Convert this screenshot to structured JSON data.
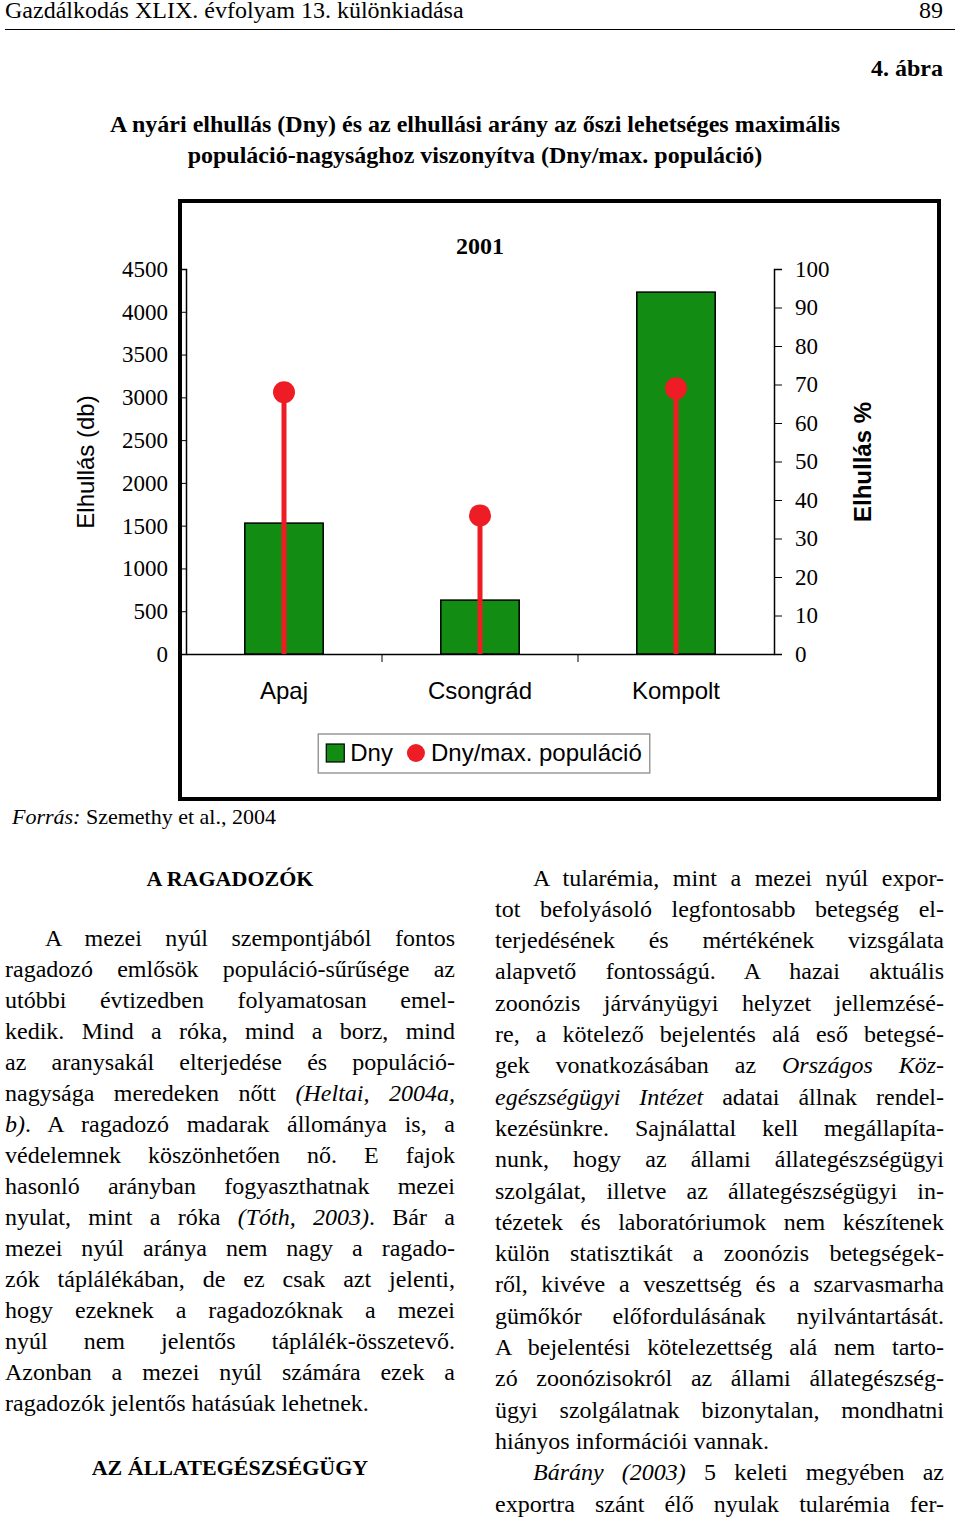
{
  "header": {
    "journal": "Gazdálkodás XLIX. évfolyam 13. különkiadása",
    "page": "89"
  },
  "figure": {
    "number": "4. ábra",
    "title_lines": [
      "A nyári elhullás (Dny) és az elhullási arány az őszi lehetséges maximális",
      "populáció-nagysághoz viszonyítva (Dny/max. populáció)"
    ],
    "source": [
      {
        "italic": "Forrás:"
      },
      " Szemethy et al., 2004"
    ]
  },
  "chart_data": {
    "type": "bar",
    "title": "2001",
    "categories": [
      "Apaj",
      "Csongrád",
      "Kompolt"
    ],
    "series": [
      {
        "name": "Dny",
        "type": "bar",
        "color": "#138c13",
        "values": [
          1530,
          630,
          4230
        ]
      },
      {
        "name": "Dny/max. populáció",
        "type": "lollipop",
        "color": "#ee1c24",
        "marker": "circle",
        "axis": "y2",
        "values": [
          68,
          36,
          69
        ]
      }
    ],
    "ylabel": "Elhullás (db)",
    "y2label": "Elhullás %",
    "ylim": [
      0,
      4500
    ],
    "yticks": [
      0,
      500,
      1000,
      1500,
      2000,
      2500,
      3000,
      3500,
      4000,
      4500
    ],
    "y2lim": [
      0,
      100
    ],
    "y2ticks": [
      0,
      10,
      20,
      30,
      40,
      50,
      60,
      70,
      80,
      90,
      100
    ],
    "grid": false,
    "legend": "bottom"
  },
  "left_column": {
    "heading": "A RAGADOZÓK",
    "paragraph": [
      [
        "A mezei nyúl szempontjából fontos"
      ],
      [
        "ragadozó emlősök populáció-sűrűsége az"
      ],
      [
        "utóbbi évtizedben folyamatosan emel-"
      ],
      [
        "kedik. Mind a róka, mind a borz, mind"
      ],
      [
        "az aranysakál elterjedése és populáció-"
      ],
      [
        "nagysága meredeken nőtt ",
        {
          "italic": "(Heltai, 2004a,"
        }
      ],
      [
        {
          "italic": "b)"
        },
        ". A ragadozó madarak állománya is, a"
      ],
      [
        "védelemnek köszönhetően nő. E fajok"
      ],
      [
        "hasonló arányban fogyaszthatnak mezei"
      ],
      [
        "nyulat, mint a róka ",
        {
          "italic": "(Tóth, 2003)"
        },
        ". Bár a"
      ],
      [
        "mezei nyúl aránya nem nagy a ragado-"
      ],
      [
        "zók táplálékában, de ez csak azt jelenti,"
      ],
      [
        "hogy ezeknek a ragadozóknak a mezei"
      ],
      [
        "nyúl nem jelentős táplálék-összetevő."
      ],
      [
        "Azonban a mezei nyúl számára ezek a"
      ],
      [
        "ragadozók jelentős hatásúak lehetnek."
      ]
    ],
    "heading2": "AZ ÁLLATEGÉSZSÉGÜGY"
  },
  "right_column": {
    "paragraphs": [
      [
        [
          "A tularémia, mint a mezei nyúl expor-"
        ],
        [
          "tot befolyásoló legfontosabb betegség el-"
        ],
        [
          "terjedésének és mértékének vizsgálata"
        ],
        [
          "alapvető fontosságú. A hazai aktuális"
        ],
        [
          "zoonózis járványügyi helyzet jellemzésé-"
        ],
        [
          "re, a kötelező bejelentés alá eső betegsé-"
        ],
        [
          "gek vonatkozásában az ",
          {
            "italic": "Országos Köz-"
          }
        ],
        [
          {
            "italic": "egészségügyi Intézet"
          },
          " adatai állnak rendel-"
        ],
        [
          "kezésünkre. Sajnálattal kell megállapíta-"
        ],
        [
          "nunk, hogy az állami állategészségügyi"
        ],
        [
          "szolgálat, illetve az állategészségügyi in-"
        ],
        [
          "tézetek és laboratóriumok nem készítenek"
        ],
        [
          "külön statisztikát a zoonózis betegségek-"
        ],
        [
          "ről, kivéve a veszettség és a szarvasmarha"
        ],
        [
          "gümőkór előfordulásának nyilvántartását."
        ],
        [
          "A bejelentési kötelezettség alá nem tarto-"
        ],
        [
          "zó zoonózisokról az állami állategészség-"
        ],
        [
          "ügyi szolgálatnak bizonytalan, mondhatni"
        ],
        [
          "hiányos információi vannak."
        ]
      ],
      [
        [
          {
            "italic": "Bárány (2003)"
          },
          " 5 keleti megyében az"
        ],
        [
          "exportra szánt élő nyulak tularémia fer-"
        ]
      ]
    ]
  }
}
